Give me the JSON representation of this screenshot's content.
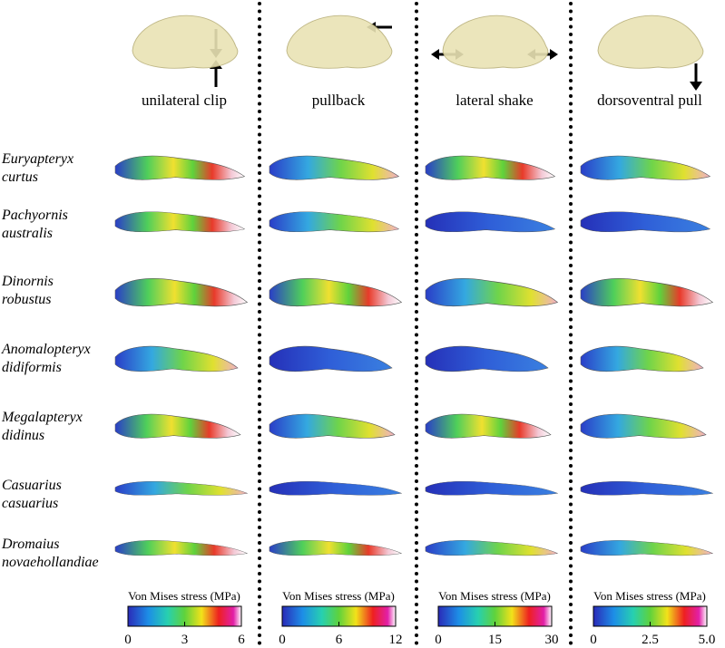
{
  "columns": [
    {
      "label": "unilateral clip",
      "colorbar": {
        "title": "Von Mises stress (MPa)",
        "ticks": [
          0,
          3,
          6
        ]
      }
    },
    {
      "label": "pullback",
      "colorbar": {
        "title": "Von Mises stress (MPa)",
        "ticks": [
          0,
          6,
          12
        ]
      }
    },
    {
      "label": "lateral shake",
      "colorbar": {
        "title": "Von Mises stress (MPa)",
        "ticks": [
          0,
          15,
          30
        ]
      }
    },
    {
      "label": "dorsoventral pull",
      "colorbar": {
        "title": "Von Mises stress (MPa)",
        "ticks": [
          0,
          2.5,
          {
            "value": 5,
            "label": "5.0"
          }
        ]
      }
    }
  ],
  "species": [
    {
      "genus": "Euryapteryx",
      "species": "curtus"
    },
    {
      "genus": "Pachyornis",
      "species": "australis"
    },
    {
      "genus": "Dinornis",
      "species": "robustus"
    },
    {
      "genus": "Anomalopteryx",
      "species": "didiformis"
    },
    {
      "genus": "Megalapteryx",
      "species": "didinus"
    },
    {
      "genus": "Casuarius",
      "species": "casuarius"
    },
    {
      "genus": "Dromaius",
      "species": "novaehollandiae"
    }
  ]
}
